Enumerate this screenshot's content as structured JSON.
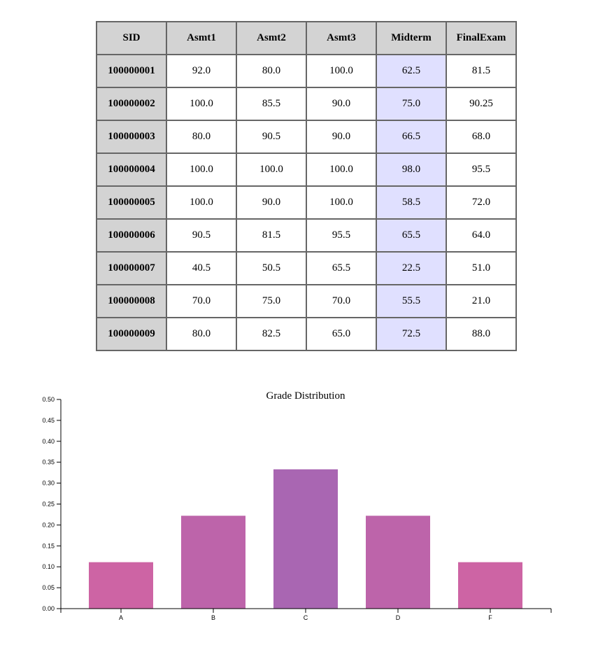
{
  "table": {
    "headers": [
      "SID",
      "Asmt1",
      "Asmt2",
      "Asmt3",
      "Midterm",
      "FinalExam"
    ],
    "highlight_column": "Midterm",
    "highlight_color": "#e0e0ff",
    "header_color": "#d3d3d3",
    "rows": [
      [
        "100000001",
        "92.0",
        "80.0",
        "100.0",
        "62.5",
        "81.5"
      ],
      [
        "100000002",
        "100.0",
        "85.5",
        "90.0",
        "75.0",
        "90.25"
      ],
      [
        "100000003",
        "80.0",
        "90.5",
        "90.0",
        "66.5",
        "68.0"
      ],
      [
        "100000004",
        "100.0",
        "100.0",
        "100.0",
        "98.0",
        "95.5"
      ],
      [
        "100000005",
        "100.0",
        "90.0",
        "100.0",
        "58.5",
        "72.0"
      ],
      [
        "100000006",
        "90.5",
        "81.5",
        "95.5",
        "65.5",
        "64.0"
      ],
      [
        "100000007",
        "40.5",
        "50.5",
        "65.5",
        "22.5",
        "51.0"
      ],
      [
        "100000008",
        "70.0",
        "75.0",
        "70.0",
        "55.5",
        "21.0"
      ],
      [
        "100000009",
        "80.0",
        "82.5",
        "65.0",
        "72.5",
        "88.0"
      ]
    ]
  },
  "chart_data": {
    "type": "bar",
    "title": "Grade Distribution",
    "xlabel": "",
    "ylabel": "",
    "categories": [
      "A",
      "B",
      "C",
      "D",
      "F"
    ],
    "values": [
      0.111,
      0.222,
      0.333,
      0.222,
      0.111
    ],
    "ylim": [
      0,
      0.5
    ],
    "yticks": [
      "0.00",
      "0.05",
      "0.10",
      "0.15",
      "0.20",
      "0.25",
      "0.30",
      "0.35",
      "0.40",
      "0.45",
      "0.50"
    ],
    "bar_colors": [
      "#cd64a4",
      "#bd64aa",
      "#a966b2",
      "#bd64aa",
      "#cd64a4"
    ],
    "grid": false
  }
}
